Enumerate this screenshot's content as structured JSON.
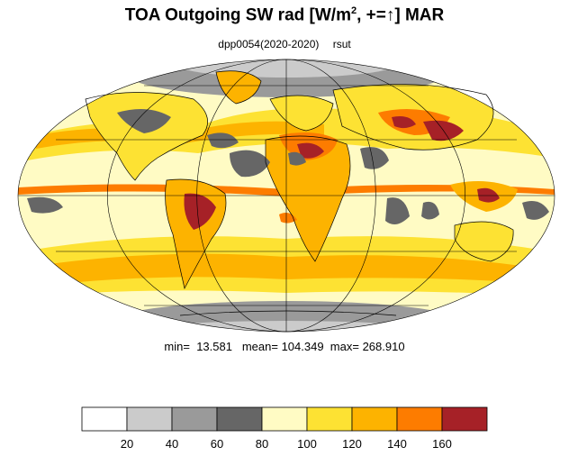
{
  "title": {
    "main_prefix": "TOA Outgoing SW rad [W/m",
    "superscript": "2",
    "main_suffix": ", +=",
    "arrow": "↑",
    "main_end": "] MAR"
  },
  "subtitle": {
    "run": "dpp0054(2020-2020)",
    "variable": "rsut"
  },
  "stats": {
    "min_label": "min=",
    "min_value": "13.581",
    "mean_label": "mean=",
    "mean_value": "104.349",
    "max_label": "max=",
    "max_value": "268.910"
  },
  "colorbar": {
    "colors": [
      "#ffffff",
      "#cbcbcb",
      "#9a9a9a",
      "#666666",
      "#fffbc4",
      "#fde233",
      "#fdb300",
      "#fd7c00",
      "#a62127"
    ],
    "tick_values": [
      "20",
      "40",
      "60",
      "80",
      "100",
      "120",
      "140",
      "160"
    ]
  },
  "map": {
    "projection": "Mollweide",
    "ocean_base_color": "#fffbc4"
  }
}
